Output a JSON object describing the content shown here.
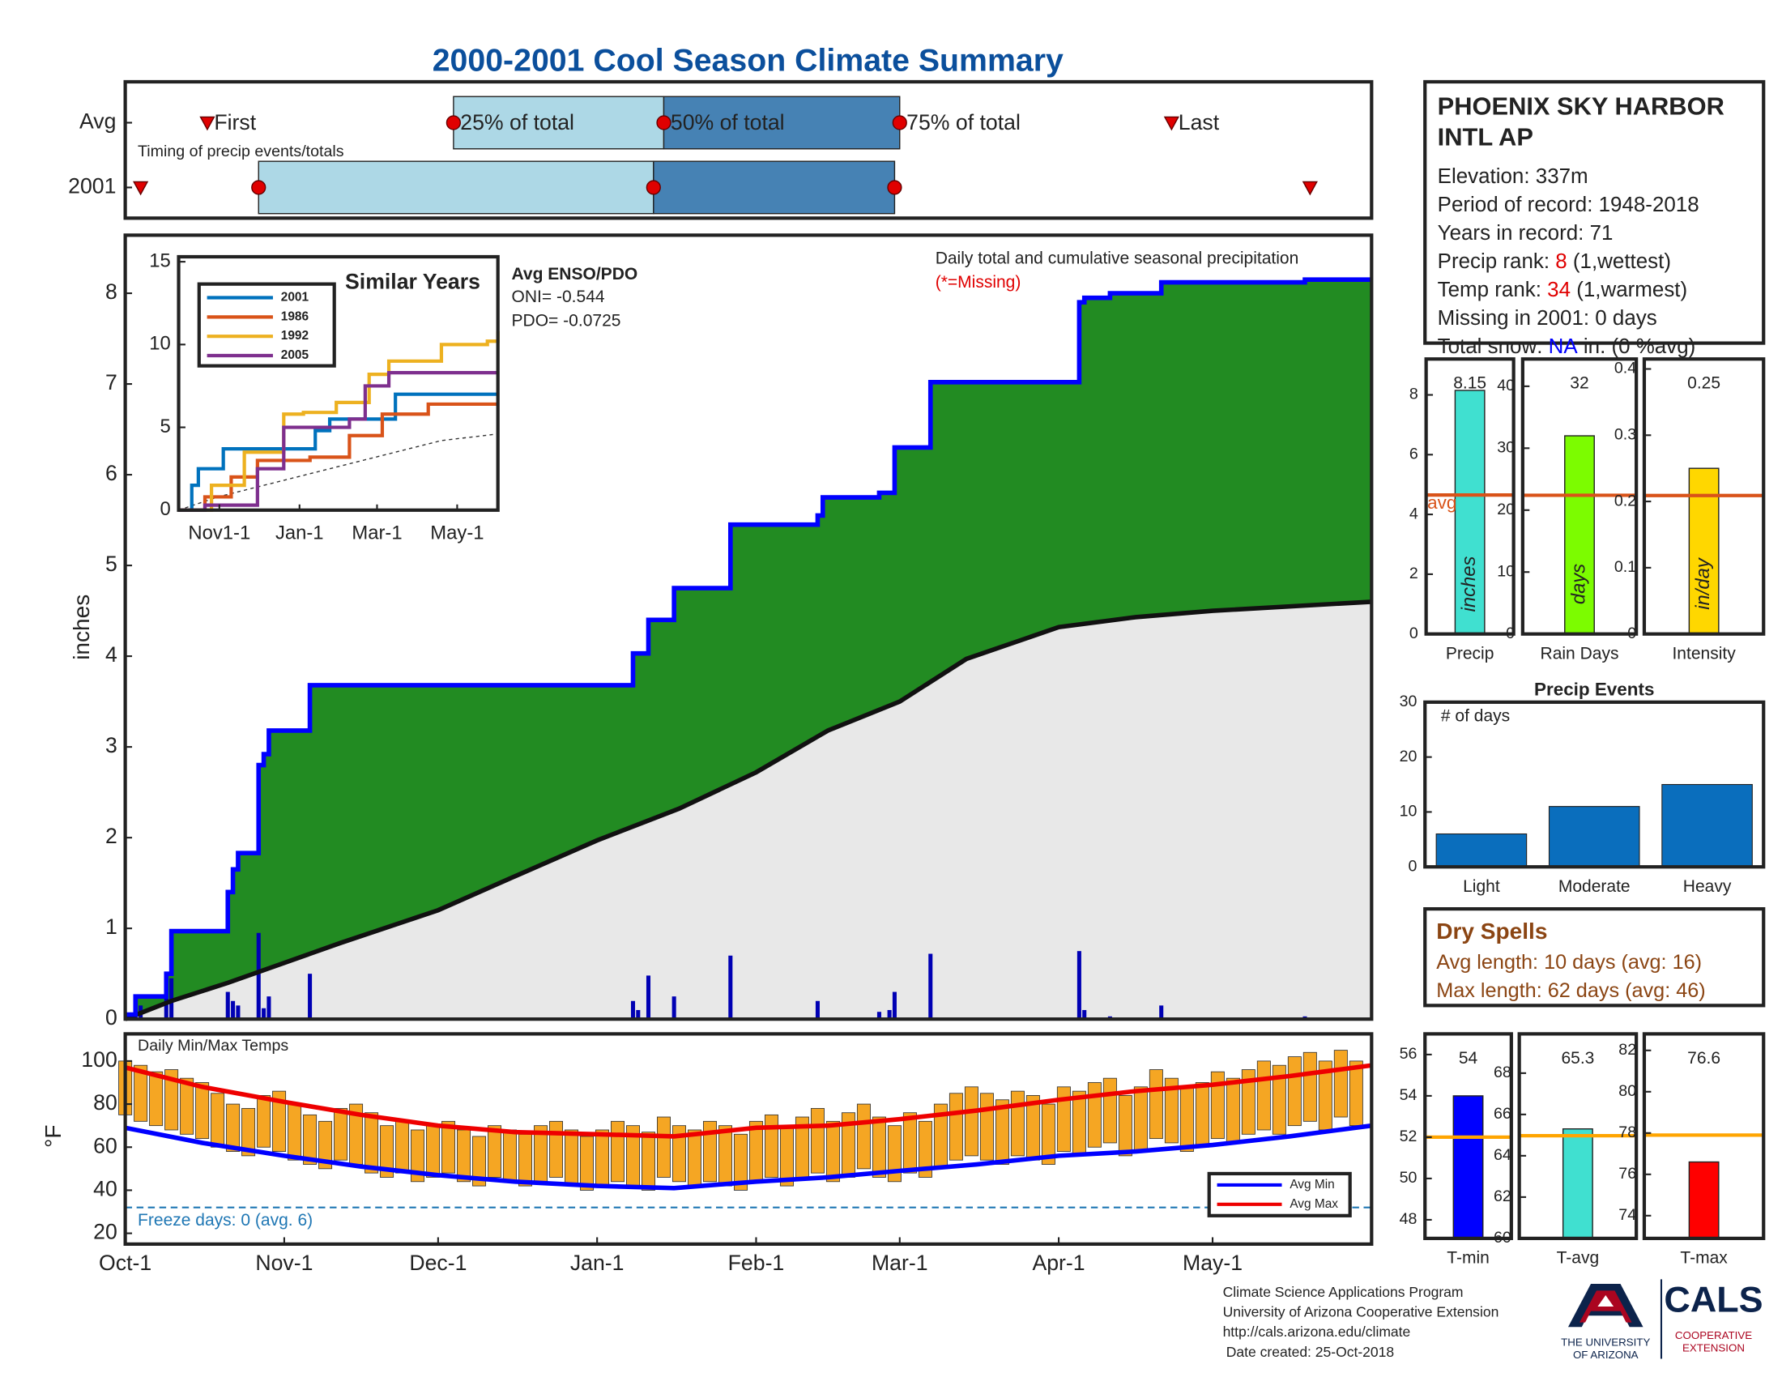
{
  "title": "2000-2001 Cool Season Climate Summary",
  "chart_data": [
    {
      "type": "timeline",
      "annotation": "Timing of precip events/totals",
      "marker_labels": [
        "First",
        "25% of total",
        "50% of total",
        "75% of total",
        "Last"
      ],
      "xlim": [
        0,
        243
      ],
      "light": "#add8e6",
      "dark": "#4682b4",
      "marker_color": "#e00000",
      "series": [
        {
          "name": "Avg",
          "values": [
            16,
            64,
            105,
            151,
            204
          ]
        },
        {
          "name": "2001",
          "values": [
            3,
            26,
            103,
            150,
            231
          ]
        }
      ]
    },
    {
      "type": "precip",
      "ylabel": "inches",
      "note": "Daily total and cumulative seasonal precipitation",
      "missing": "(*=Missing)",
      "enso": {
        "title": "Avg ENSO/PDO",
        "lines": [
          "ONI= -0.544",
          "PDO= -0.0725"
        ]
      },
      "xlim": [
        0,
        243
      ],
      "ylim": [
        0,
        8.64
      ],
      "yticks": [
        0,
        1,
        2,
        3,
        4,
        5,
        6,
        7,
        8
      ],
      "observed": {
        "color": "#0000ff",
        "fill": "#228b22",
        "x": [
          0,
          2,
          8,
          9,
          20,
          21,
          22,
          26,
          27,
          28,
          36,
          99,
          102,
          107,
          118,
          135,
          136,
          147,
          150,
          157,
          186,
          187,
          192,
          202,
          230,
          243
        ],
        "values": [
          0.05,
          0.25,
          0.5,
          0.97,
          1.4,
          1.65,
          1.83,
          2.8,
          2.92,
          3.18,
          3.68,
          4.03,
          4.4,
          4.75,
          5.45,
          5.55,
          5.75,
          5.8,
          6.3,
          7.02,
          7.9,
          7.95,
          8.0,
          8.12,
          8.15,
          8.15
        ]
      },
      "average": {
        "color": "#111111",
        "fill": "#e8e8e8",
        "x": [
          0,
          9,
          20,
          31,
          42,
          61,
          75,
          92,
          108,
          123,
          137,
          151,
          164,
          182,
          197,
          212,
          243
        ],
        "values": [
          0,
          0.2,
          0.4,
          0.62,
          0.84,
          1.2,
          1.55,
          1.97,
          2.32,
          2.72,
          3.18,
          3.5,
          3.97,
          4.32,
          4.43,
          4.5,
          4.6
        ]
      },
      "daily": {
        "color": "#0000b4",
        "x": [
          2,
          3,
          8,
          9,
          20,
          21,
          22,
          26,
          27,
          28,
          36,
          99,
          100,
          102,
          107,
          118,
          135,
          147,
          149,
          150,
          157,
          186,
          187,
          192,
          202,
          230
        ],
        "values": [
          0.2,
          0.15,
          0.3,
          0.45,
          0.3,
          0.2,
          0.15,
          0.95,
          0.12,
          0.25,
          0.5,
          0.2,
          0.1,
          0.48,
          0.25,
          0.7,
          0.2,
          0.08,
          0.1,
          0.3,
          0.72,
          0.75,
          0.1,
          0.03,
          0.15,
          0.03
        ]
      }
    },
    {
      "type": "line",
      "title": "Similar Years",
      "xlim": [
        0,
        243
      ],
      "ylim": [
        0,
        15.3
      ],
      "yticks": [
        0,
        5,
        10,
        15
      ],
      "xticks": [
        {
          "value": 31,
          "label": "Nov1-1"
        },
        {
          "value": 92,
          "label": "Jan-1"
        },
        {
          "value": 151,
          "label": "Mar-1"
        },
        {
          "value": 212,
          "label": "May-1"
        }
      ],
      "average": {
        "color": "#333333",
        "x": [
          0,
          30,
          90,
          150,
          200,
          243
        ],
        "values": [
          0,
          0.8,
          2.0,
          3.2,
          4.2,
          4.6
        ]
      },
      "series": [
        {
          "name": "2001",
          "color": "#0072bd",
          "x": [
            0,
            10,
            15,
            34,
            97,
            104,
            115,
            165,
            243
          ],
          "values": [
            0,
            1.5,
            2.5,
            3.7,
            3.7,
            4.8,
            5.5,
            7.0,
            7.0
          ]
        },
        {
          "name": "1986",
          "color": "#d95319",
          "x": [
            0,
            20,
            40,
            60,
            100,
            130,
            155,
            190,
            243
          ],
          "values": [
            0,
            0.8,
            2.0,
            3.0,
            3.2,
            4.5,
            5.8,
            6.4,
            6.4
          ]
        },
        {
          "name": "1992",
          "color": "#edb120",
          "x": [
            0,
            25,
            50,
            80,
            95,
            120,
            145,
            160,
            200,
            235,
            243
          ],
          "values": [
            0,
            1.5,
            3.5,
            5.8,
            5.9,
            6.5,
            8.2,
            9.0,
            10.0,
            10.2,
            10.8
          ]
        },
        {
          "name": "2005",
          "color": "#7e2f8e",
          "x": [
            0,
            20,
            60,
            80,
            130,
            142,
            160,
            243
          ],
          "values": [
            0,
            0.3,
            2.5,
            5.0,
            5.5,
            7.5,
            8.3,
            8.3
          ]
        }
      ]
    },
    {
      "type": "minmax",
      "title": "Daily Min/Max Temps",
      "ylabel": "°F",
      "xlim": [
        0,
        243
      ],
      "ylim": [
        15,
        112.6
      ],
      "yticks": [
        20,
        40,
        60,
        80,
        100
      ],
      "xticks": [
        {
          "value": 0,
          "label": "Oct-1"
        },
        {
          "value": 31,
          "label": "Nov-1"
        },
        {
          "value": 61,
          "label": "Dec-1"
        },
        {
          "value": 92,
          "label": "Jan-1"
        },
        {
          "value": 123,
          "label": "Feb-1"
        },
        {
          "value": 151,
          "label": "Mar-1"
        },
        {
          "value": 182,
          "label": "Apr-1"
        },
        {
          "value": 212,
          "label": "May-1"
        }
      ],
      "freeze": {
        "value": 32,
        "label": "Freeze days: 0 (avg. 6)",
        "color": "#1f77b4"
      },
      "daily": {
        "color": "#f5a623",
        "x": [
          0,
          3,
          6,
          9,
          12,
          15,
          18,
          21,
          24,
          27,
          30,
          33,
          36,
          39,
          42,
          45,
          48,
          51,
          54,
          57,
          60,
          63,
          66,
          69,
          72,
          75,
          78,
          81,
          84,
          87,
          90,
          93,
          96,
          99,
          102,
          105,
          108,
          111,
          114,
          117,
          120,
          123,
          126,
          129,
          132,
          135,
          138,
          141,
          144,
          147,
          150,
          153,
          156,
          159,
          162,
          165,
          168,
          171,
          174,
          177,
          180,
          183,
          186,
          189,
          192,
          195,
          198,
          201,
          204,
          207,
          210,
          213,
          216,
          219,
          222,
          225,
          228,
          231,
          234,
          237,
          240
        ],
        "max": [
          100,
          98,
          95,
          96,
          92,
          90,
          85,
          80,
          78,
          84,
          86,
          80,
          75,
          72,
          78,
          80,
          76,
          70,
          72,
          68,
          70,
          72,
          68,
          65,
          70,
          68,
          66,
          70,
          72,
          68,
          65,
          68,
          72,
          70,
          67,
          74,
          70,
          68,
          72,
          70,
          66,
          72,
          75,
          70,
          74,
          78,
          72,
          76,
          80,
          74,
          70,
          76,
          72,
          80,
          85,
          88,
          85,
          82,
          86,
          84,
          80,
          88,
          86,
          90,
          92,
          84,
          88,
          96,
          92,
          88,
          90,
          95,
          92,
          96,
          100,
          98,
          102,
          104,
          100,
          105,
          100
        ],
        "min": [
          75,
          72,
          70,
          68,
          66,
          64,
          60,
          58,
          56,
          60,
          58,
          54,
          52,
          50,
          54,
          52,
          48,
          46,
          48,
          44,
          46,
          48,
          44,
          42,
          46,
          44,
          42,
          44,
          46,
          42,
          40,
          42,
          44,
          42,
          40,
          46,
          44,
          42,
          44,
          42,
          40,
          44,
          46,
          42,
          45,
          48,
          44,
          46,
          50,
          46,
          44,
          48,
          46,
          50,
          54,
          56,
          54,
          52,
          56,
          54,
          52,
          58,
          56,
          60,
          62,
          56,
          58,
          64,
          62,
          58,
          60,
          64,
          62,
          66,
          68,
          66,
          70,
          72,
          68,
          74,
          70
        ]
      },
      "series": [
        {
          "name": "Avg Min",
          "color": "#0000ff",
          "x": [
            0,
            15,
            31,
            46,
            61,
            76,
            92,
            107,
            123,
            137,
            151,
            166,
            182,
            197,
            212,
            227,
            243
          ],
          "values": [
            69,
            62,
            56,
            51,
            47,
            44,
            42,
            41,
            44,
            46,
            49,
            52,
            56,
            58,
            61,
            65,
            70
          ]
        },
        {
          "name": "Avg Max",
          "color": "#ee0000",
          "x": [
            0,
            15,
            31,
            46,
            61,
            76,
            92,
            107,
            123,
            137,
            151,
            166,
            182,
            197,
            212,
            227,
            243
          ],
          "values": [
            97,
            88,
            81,
            75,
            70,
            67,
            66,
            65,
            69,
            70,
            73,
            77,
            82,
            86,
            89,
            93,
            98
          ]
        }
      ]
    },
    {
      "type": "gauge",
      "category": "Precip",
      "value": 8.15,
      "avg": 4.65,
      "avg_label": "avg",
      "bar_label": "inches",
      "color": "#40e0d0",
      "avg_color": "#d95319",
      "ylim": [
        0,
        9.2
      ],
      "yticks": [
        0,
        2,
        4,
        6,
        8
      ]
    },
    {
      "type": "gauge",
      "category": "Rain Days",
      "value": 32,
      "avg": 22.4,
      "bar_label": "days",
      "color": "#7cfc00",
      "avg_color": "#d95319",
      "ylim": [
        0,
        44.4
      ],
      "yticks": [
        0,
        10,
        20,
        30,
        40
      ]
    },
    {
      "type": "gauge",
      "category": "Intensity",
      "value": 0.25,
      "avg": 0.209,
      "bar_label": "in/day",
      "color": "#ffd700",
      "avg_color": "#d95319",
      "ylim": [
        0,
        0.415
      ],
      "yticks": [
        0,
        0.1,
        0.2,
        0.3,
        0.4
      ]
    },
    {
      "type": "bar",
      "title": "Precip Events",
      "annotation": "# of days",
      "categories": [
        "Light",
        "Moderate",
        "Heavy"
      ],
      "values": [
        6,
        11,
        15
      ],
      "color": "#0a6ebd",
      "ylim": [
        0,
        30
      ],
      "yticks": [
        0,
        10,
        20,
        30
      ]
    },
    {
      "type": "gauge",
      "category": "T-min",
      "value": 54,
      "avg": 52.0,
      "color": "#0000ff",
      "avg_color": "#ffa500",
      "ylim": [
        47.1,
        57
      ],
      "yticks": [
        48,
        50,
        52,
        54,
        56
      ]
    },
    {
      "type": "gauge",
      "category": "T-avg",
      "value": 65.3,
      "avg": 64.97,
      "color": "#40e0d0",
      "avg_color": "#ffa500",
      "ylim": [
        60,
        69.9
      ],
      "yticks": [
        60,
        62,
        64,
        66,
        68
      ]
    },
    {
      "type": "gauge",
      "category": "T-max",
      "value": 76.6,
      "avg": 77.9,
      "color": "#ff0000",
      "avg_color": "#ffa500",
      "ylim": [
        72.9,
        82.8
      ],
      "yticks": [
        74,
        76,
        78,
        80,
        82
      ]
    }
  ],
  "station": {
    "name": [
      "PHOENIX SKY HARBOR",
      "INTL AP"
    ],
    "lines": [
      [
        {
          "text": "Elevation: 337m"
        }
      ],
      [
        {
          "text": "Period of record: 1948-2018"
        }
      ],
      [
        {
          "text": "Years in record: 71"
        }
      ],
      [
        {
          "text": "Precip rank: "
        },
        {
          "text": "8",
          "color": "#e00000"
        },
        {
          "text": " (1,wettest)"
        }
      ],
      [
        {
          "text": "Temp rank: "
        },
        {
          "text": "34",
          "color": "#e00000"
        },
        {
          "text": " (1,warmest)"
        }
      ],
      [
        {
          "text": "Missing in 2001: 0 days"
        }
      ],
      [
        {
          "text": "Total snow: "
        },
        {
          "text": "NA",
          "color": "#0000ff"
        },
        {
          "text": " in. (0 %avg)"
        }
      ]
    ]
  },
  "dry_spells": {
    "title": "Dry Spells",
    "color": "#8b4513",
    "lines": [
      "Avg length: 10 days (avg: 16)",
      "Max length: 62 days (avg: 46)"
    ]
  },
  "footer": {
    "lines": [
      "Climate Science Applications Program",
      "University of Arizona Cooperative Extension",
      "http://cals.arizona.edu/climate",
      "Date created: 25-Oct-2018"
    ],
    "logo": {
      "university": [
        "THE UNIVERSITY",
        "OF ARIZONA"
      ],
      "cals": "CALS",
      "extension": [
        "COOPERATIVE",
        "EXTENSION"
      ]
    }
  }
}
